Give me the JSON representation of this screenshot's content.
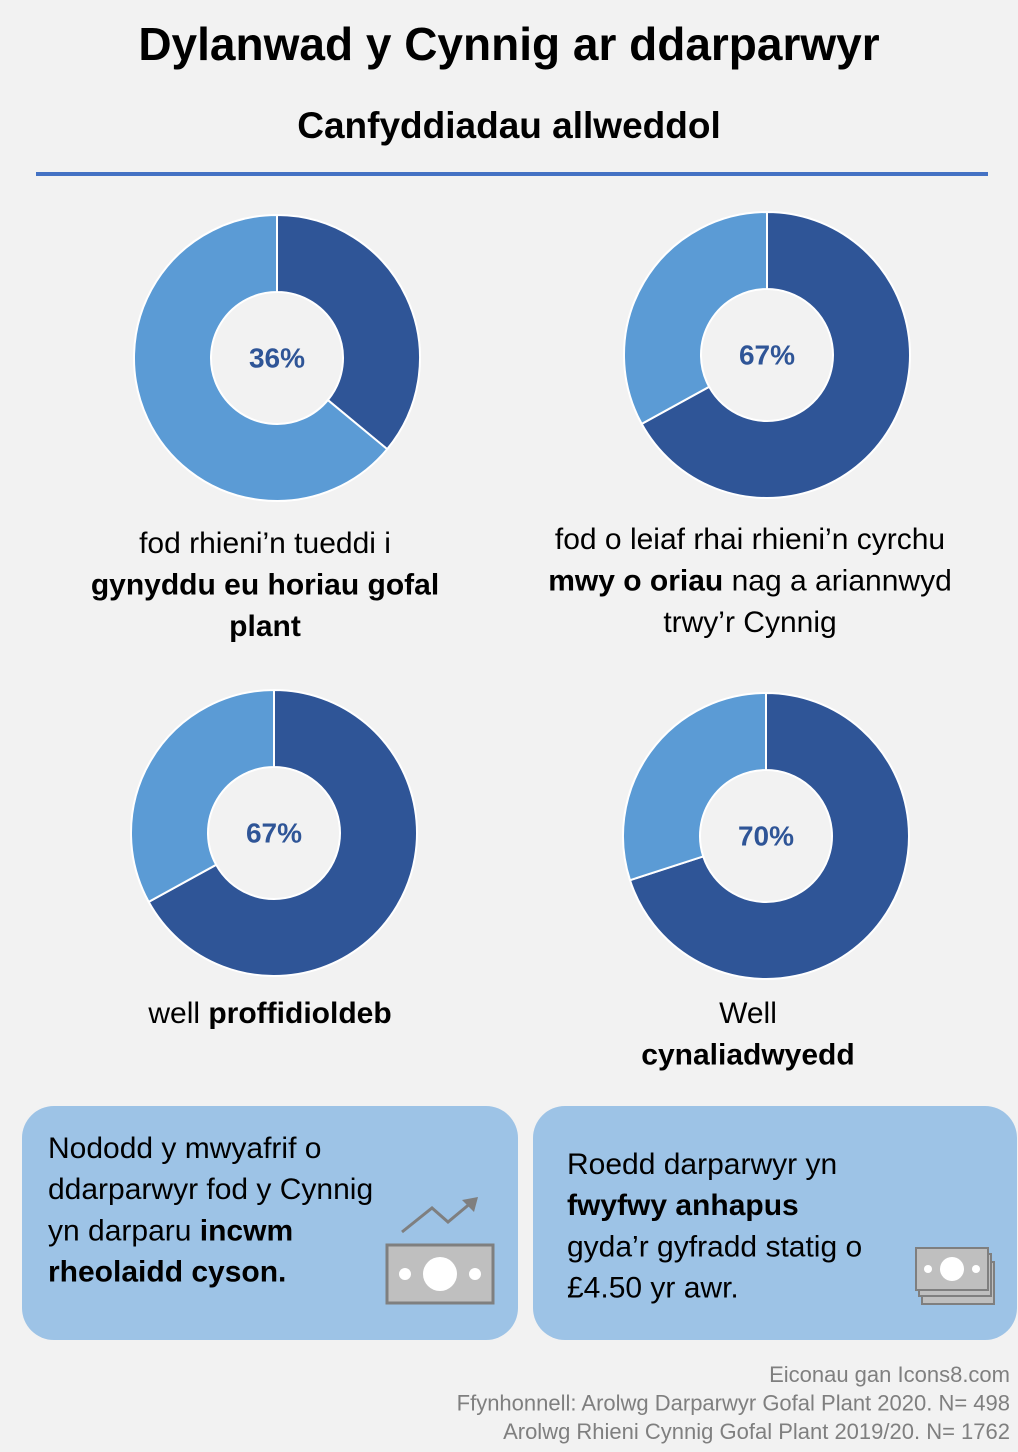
{
  "title": "Dylanwad y Cynnig ar ddarparwyr",
  "subtitle": "Canfyddiadau allweddol",
  "chart_data": [
    {
      "type": "donut",
      "categories": [
        null,
        null
      ],
      "values": [
        36,
        64
      ],
      "value_labels": [
        "36%",
        null
      ],
      "colors": [
        "#2f5597",
        "#5b9bd5"
      ],
      "caption": [
        [
          {
            "text": "fod rhieni’n tueddi i"
          }
        ],
        [
          {
            "text": "gynyddu eu horiau gofal",
            "bold": true
          }
        ],
        [
          {
            "text": "plant",
            "bold": true
          }
        ]
      ]
    },
    {
      "type": "donut",
      "categories": [
        null,
        null
      ],
      "values": [
        67,
        33
      ],
      "value_labels": [
        "67%",
        null
      ],
      "colors": [
        "#2f5597",
        "#5b9bd5"
      ],
      "caption": [
        [
          {
            "text": "fod o leiaf rhai rhieni’n cyrchu"
          }
        ],
        [
          {
            "text": "mwy o oriau",
            "bold": true
          },
          {
            "text": " nag a ariannwyd"
          }
        ],
        [
          {
            "text": "trwy’r Cynnig"
          }
        ]
      ]
    },
    {
      "type": "donut",
      "categories": [
        null,
        null
      ],
      "values": [
        67,
        33
      ],
      "value_labels": [
        "67%",
        null
      ],
      "colors": [
        "#2f5597",
        "#5b9bd5"
      ],
      "caption": [
        [
          {
            "text": "well "
          },
          {
            "text": "proffidioldeb",
            "bold": true
          }
        ]
      ]
    },
    {
      "type": "donut",
      "categories": [
        null,
        null
      ],
      "values": [
        70,
        30
      ],
      "value_labels": [
        "70%",
        null
      ],
      "colors": [
        "#2f5597",
        "#5b9bd5"
      ],
      "caption": [
        [
          {
            "text": "Well"
          }
        ],
        [
          {
            "text": "cynaliadwyedd",
            "bold": true
          }
        ]
      ]
    }
  ],
  "boxes": [
    {
      "lines": [
        [
          {
            "text": "Nododd y mwyafrif o"
          }
        ],
        [
          {
            "text": "ddarparwyr fod y Cynnig"
          }
        ],
        [
          {
            "text": "yn darparu "
          },
          {
            "text": "incwm",
            "bold": true
          }
        ],
        [
          {
            "text": "rheolaidd cyson.",
            "bold": true
          }
        ]
      ]
    },
    {
      "lines": [
        [
          {
            "text": "Roedd darparwyr yn"
          }
        ],
        [
          {
            "text": "fwyfwy anhapus",
            "bold": true
          }
        ],
        [
          {
            "text": "gyda’r gyfradd statig o"
          }
        ],
        [
          {
            "text": "£4.50 yr awr."
          }
        ]
      ]
    }
  ],
  "footer": [
    "Eiconau gan Icons8.com",
    "Ffynhonnell: Arolwg Darparwyr Gofal Plant 2020. N= 498",
    "Arolwg Rhieni Cynnig Gofal Plant 2019/20. N= 1762"
  ]
}
